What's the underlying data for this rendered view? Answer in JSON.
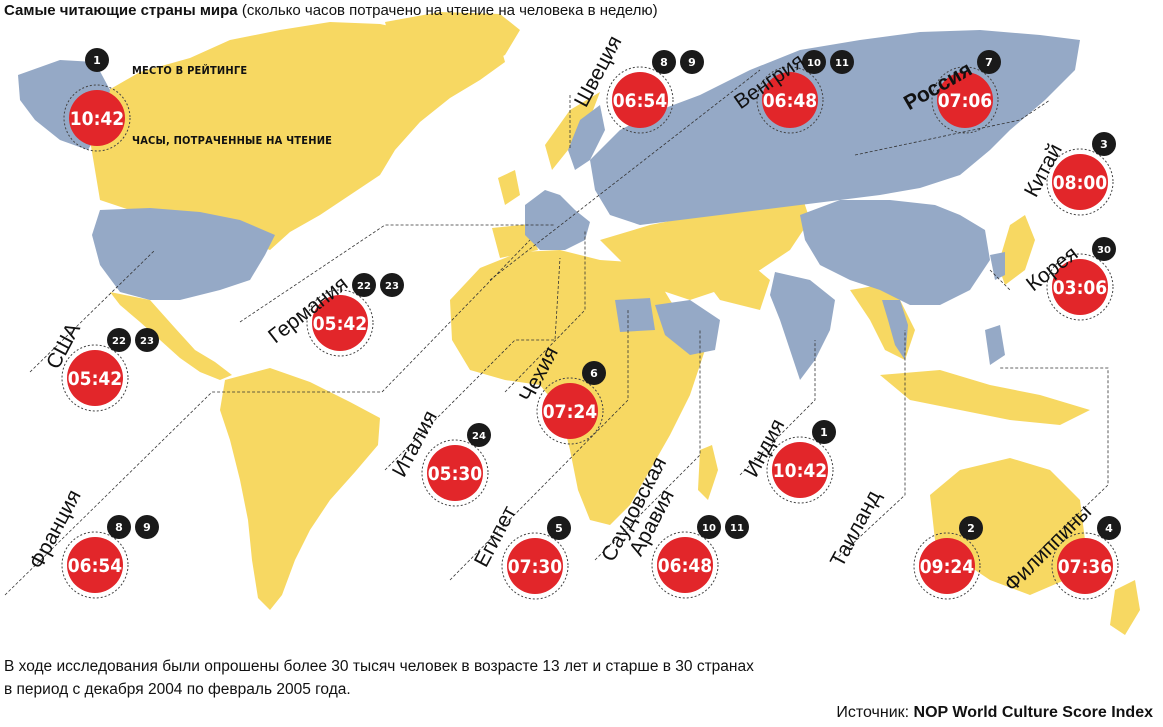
{
  "title": {
    "bold": "Самые читающие страны мира",
    "rest": "(сколько часов потрачено на чтение на человека в неделю)"
  },
  "legend": {
    "rank": "1",
    "rank_label": "МЕСТО В РЕЙТИНГЕ",
    "hours": "10:42",
    "hours_label": "ЧАСЫ, ПОТРАЧЕННЫЕ НА ЧТЕНИЕ"
  },
  "countries": [
    {
      "name": "Индия",
      "hours": "10:42",
      "ranks": [
        "1"
      ]
    },
    {
      "name": "Таиланд",
      "hours": "09:24",
      "ranks": [
        "2"
      ]
    },
    {
      "name": "Китай",
      "hours": "08:00",
      "ranks": [
        "3"
      ]
    },
    {
      "name": "Филиппины",
      "hours": "07:36",
      "ranks": [
        "4"
      ]
    },
    {
      "name": "Египет",
      "hours": "07:30",
      "ranks": [
        "5"
      ]
    },
    {
      "name": "Чехия",
      "hours": "07:24",
      "ranks": [
        "6"
      ]
    },
    {
      "name": "Россия",
      "hours": "07:06",
      "ranks": [
        "7"
      ]
    },
    {
      "name": "Швеция",
      "hours": "06:54",
      "ranks": [
        "8",
        "9"
      ]
    },
    {
      "name": "Франция",
      "hours": "06:54",
      "ranks": [
        "8",
        "9"
      ]
    },
    {
      "name": "Венгрия",
      "hours": "06:48",
      "ranks": [
        "10",
        "11"
      ]
    },
    {
      "name": "Саудовская Аравия",
      "hours": "06:48",
      "ranks": [
        "10",
        "11"
      ]
    },
    {
      "name": "США",
      "hours": "05:42",
      "ranks": [
        "22",
        "23"
      ]
    },
    {
      "name": "Германия",
      "hours": "05:42",
      "ranks": [
        "22",
        "23"
      ]
    },
    {
      "name": "Италия",
      "hours": "05:30",
      "ranks": [
        "24"
      ]
    },
    {
      "name": "Корея",
      "hours": "03:06",
      "ranks": [
        "30"
      ]
    }
  ],
  "colors": {
    "highlighted": "#95A9C6",
    "land": "#F7D862",
    "badge": "#E2262A",
    "rank_badge": "#1A1A1A"
  },
  "footnote": {
    "line1": "В ходе исследования были опрошены более 30 тысяч человек в возрасте 13 лет и старше в 30 странах",
    "line2": "в период с декабря 2004 по февраль 2005 года."
  },
  "source": {
    "label": "Источник:",
    "name": "NOP World Culture Score Index"
  }
}
